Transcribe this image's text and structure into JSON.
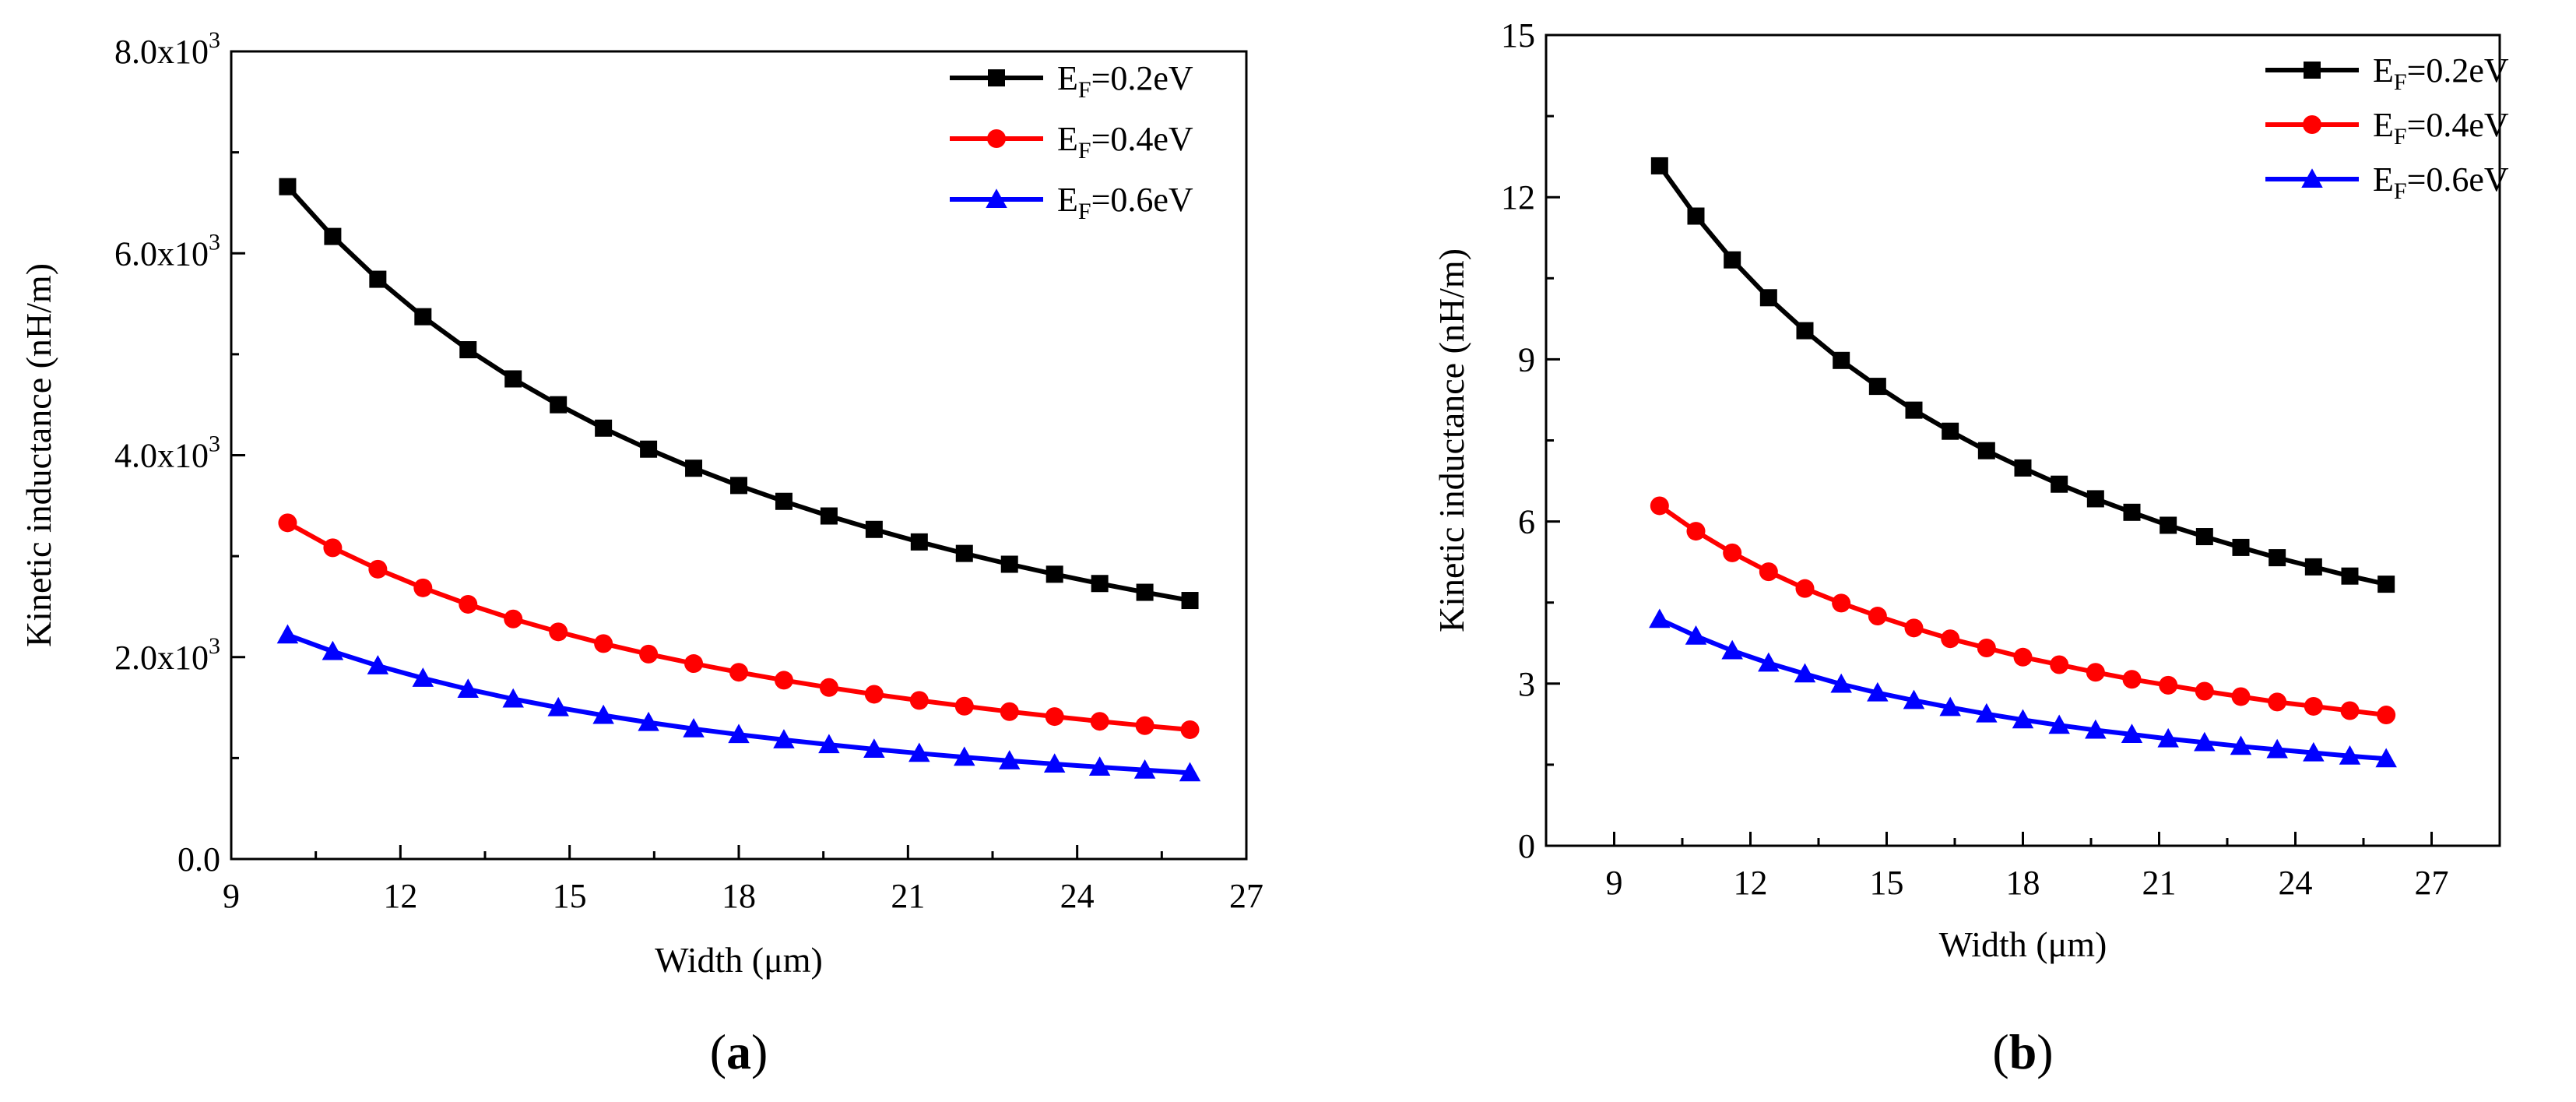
{
  "colors": {
    "series_0": "#000000",
    "series_1": "#ff0000",
    "series_2": "#0000ff"
  },
  "legend_items": [
    {
      "base": "E",
      "sub": "F",
      "rest": "=0.2eV",
      "marker": "square"
    },
    {
      "base": "E",
      "sub": "F",
      "rest": "=0.4eV",
      "marker": "circle"
    },
    {
      "base": "E",
      "sub": "F",
      "rest": "=0.6eV",
      "marker": "triangle"
    }
  ],
  "chart_data": [
    {
      "type": "line",
      "panel_label": "a",
      "xlabel": "Width (μm)",
      "ylabel": "Kinetic inductance (nH/m)",
      "xlim": [
        9,
        27
      ],
      "ylim": [
        0,
        8000
      ],
      "xticks": [
        9,
        12,
        15,
        18,
        21,
        24,
        27
      ],
      "xtick_labels": [
        "9",
        "12",
        "15",
        "18",
        "21",
        "24",
        "27"
      ],
      "yticks": [
        0,
        2000,
        4000,
        6000,
        8000
      ],
      "ytick_labels": [
        {
          "base": "0.0",
          "exp": ""
        },
        {
          "base": "2.0x10",
          "exp": "3"
        },
        {
          "base": "4.0x10",
          "exp": "3"
        },
        {
          "base": "6.0x10",
          "exp": "3"
        },
        {
          "base": "8.0x10",
          "exp": "3"
        }
      ],
      "legend_position": "top-right",
      "x": [
        10,
        10.8,
        11.6,
        12.4,
        13.2,
        14.0,
        14.8,
        15.6,
        16.4,
        17.2,
        18.0,
        18.8,
        19.6,
        20.4,
        21.2,
        22.0,
        22.8,
        23.6,
        24.4,
        25.2,
        26.0
      ],
      "series": [
        {
          "name": "EF=0.2eV",
          "values": [
            6660,
            6167,
            5743,
            5372,
            5045,
            4756,
            4500,
            4268,
            4060,
            3871,
            3700,
            3543,
            3398,
            3265,
            3141,
            3027,
            2920,
            2821,
            2729,
            2642,
            2561
          ]
        },
        {
          "name": "EF=0.4eV",
          "values": [
            3330,
            3083,
            2871,
            2686,
            2523,
            2378,
            2250,
            2134,
            2030,
            1936,
            1850,
            1771,
            1699,
            1632,
            1571,
            1514,
            1460,
            1411,
            1364,
            1321,
            1281
          ]
        },
        {
          "name": "EF=0.6eV",
          "values": [
            2220,
            2056,
            1914,
            1791,
            1682,
            1585,
            1500,
            1423,
            1353,
            1290,
            1233,
            1181,
            1133,
            1088,
            1047,
            1009,
            973,
            941,
            910,
            881,
            854
          ]
        }
      ]
    },
    {
      "type": "line",
      "panel_label": "b",
      "xlabel": "Width (μm)",
      "ylabel": "Kinetic inductance (nH/m)",
      "xlim": [
        7.5,
        28.5
      ],
      "ylim": [
        0,
        15
      ],
      "xticks": [
        9,
        12,
        15,
        18,
        21,
        24,
        27
      ],
      "xtick_labels": [
        "9",
        "12",
        "15",
        "18",
        "21",
        "24",
        "27"
      ],
      "yticks": [
        0,
        3,
        6,
        9,
        12,
        15
      ],
      "ytick_labels": [
        {
          "base": "0",
          "exp": ""
        },
        {
          "base": "3",
          "exp": ""
        },
        {
          "base": "6",
          "exp": ""
        },
        {
          "base": "9",
          "exp": ""
        },
        {
          "base": "12",
          "exp": ""
        },
        {
          "base": "15",
          "exp": ""
        }
      ],
      "legend_position": "top-right",
      "x": [
        10,
        10.8,
        11.6,
        12.4,
        13.2,
        14.0,
        14.8,
        15.6,
        16.4,
        17.2,
        18.0,
        18.8,
        19.6,
        20.4,
        21.2,
        22.0,
        22.8,
        23.6,
        24.4,
        25.2,
        26.0
      ],
      "series": [
        {
          "name": "EF=0.2eV",
          "values": [
            12.58,
            11.65,
            10.84,
            10.14,
            9.53,
            8.98,
            8.5,
            8.06,
            7.67,
            7.31,
            6.99,
            6.69,
            6.42,
            6.17,
            5.93,
            5.72,
            5.52,
            5.33,
            5.16,
            4.99,
            4.84
          ]
        },
        {
          "name": "EF=0.4eV",
          "values": [
            6.29,
            5.82,
            5.42,
            5.07,
            4.76,
            4.49,
            4.25,
            4.03,
            3.83,
            3.66,
            3.49,
            3.35,
            3.21,
            3.08,
            2.97,
            2.86,
            2.76,
            2.66,
            2.58,
            2.5,
            2.42
          ]
        },
        {
          "name": "EF=0.6eV",
          "values": [
            4.19,
            3.88,
            3.61,
            3.38,
            3.18,
            2.99,
            2.83,
            2.69,
            2.56,
            2.44,
            2.33,
            2.23,
            2.14,
            2.06,
            1.98,
            1.91,
            1.84,
            1.78,
            1.72,
            1.66,
            1.61
          ]
        }
      ]
    }
  ]
}
